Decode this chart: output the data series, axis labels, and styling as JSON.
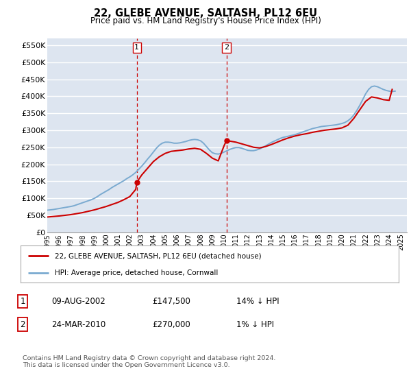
{
  "title": "22, GLEBE AVENUE, SALTASH, PL12 6EU",
  "subtitle": "Price paid vs. HM Land Registry's House Price Index (HPI)",
  "ylabel_ticks": [
    "£0",
    "£50K",
    "£100K",
    "£150K",
    "£200K",
    "£250K",
    "£300K",
    "£350K",
    "£400K",
    "£450K",
    "£500K",
    "£550K"
  ],
  "ytick_values": [
    0,
    50000,
    100000,
    150000,
    200000,
    250000,
    300000,
    350000,
    400000,
    450000,
    500000,
    550000
  ],
  "ylim": [
    0,
    570000
  ],
  "x_tick_years": [
    1995,
    1996,
    1997,
    1998,
    1999,
    2000,
    2001,
    2002,
    2003,
    2004,
    2005,
    2006,
    2007,
    2008,
    2009,
    2010,
    2011,
    2012,
    2013,
    2014,
    2015,
    2016,
    2017,
    2018,
    2019,
    2020,
    2021,
    2022,
    2023,
    2024,
    2025
  ],
  "bg_color": "#dde5f0",
  "grid_color": "#ffffff",
  "red_line_color": "#cc0000",
  "blue_line_color": "#7aaad0",
  "vline_color": "#cc0000",
  "marker1_year": 2002.6,
  "marker2_year": 2010.2,
  "marker1_value": 147500,
  "marker2_value": 270000,
  "legend_label_red": "22, GLEBE AVENUE, SALTASH, PL12 6EU (detached house)",
  "legend_label_blue": "HPI: Average price, detached house, Cornwall",
  "table_row1": [
    "1",
    "09-AUG-2002",
    "£147,500",
    "14% ↓ HPI"
  ],
  "table_row2": [
    "2",
    "24-MAR-2010",
    "£270,000",
    "1% ↓ HPI"
  ],
  "footer": "Contains HM Land Registry data © Crown copyright and database right 2024.\nThis data is licensed under the Open Government Licence v3.0.",
  "hpi_years": [
    1995,
    1995.25,
    1995.5,
    1995.75,
    1996,
    1996.25,
    1996.5,
    1996.75,
    1997,
    1997.25,
    1997.5,
    1997.75,
    1998,
    1998.25,
    1998.5,
    1998.75,
    1999,
    1999.25,
    1999.5,
    1999.75,
    2000,
    2000.25,
    2000.5,
    2000.75,
    2001,
    2001.25,
    2001.5,
    2001.75,
    2002,
    2002.25,
    2002.5,
    2002.75,
    2003,
    2003.25,
    2003.5,
    2003.75,
    2004,
    2004.25,
    2004.5,
    2004.75,
    2005,
    2005.25,
    2005.5,
    2005.75,
    2006,
    2006.25,
    2006.5,
    2006.75,
    2007,
    2007.25,
    2007.5,
    2007.75,
    2008,
    2008.25,
    2008.5,
    2008.75,
    2009,
    2009.25,
    2009.5,
    2009.75,
    2010,
    2010.25,
    2010.5,
    2010.75,
    2011,
    2011.25,
    2011.5,
    2011.75,
    2012,
    2012.25,
    2012.5,
    2012.75,
    2013,
    2013.25,
    2013.5,
    2013.75,
    2014,
    2014.25,
    2014.5,
    2014.75,
    2015,
    2015.25,
    2015.5,
    2015.75,
    2016,
    2016.25,
    2016.5,
    2016.75,
    2017,
    2017.25,
    2017.5,
    2017.75,
    2018,
    2018.25,
    2018.5,
    2018.75,
    2019,
    2019.25,
    2019.5,
    2019.75,
    2020,
    2020.25,
    2020.5,
    2020.75,
    2021,
    2021.25,
    2021.5,
    2021.75,
    2022,
    2022.25,
    2022.5,
    2022.75,
    2023,
    2023.25,
    2023.5,
    2023.75,
    2024,
    2024.25,
    2024.5
  ],
  "hpi_values": [
    65000,
    66000,
    67000,
    68500,
    70000,
    71500,
    73000,
    74500,
    76000,
    78000,
    81000,
    84000,
    87000,
    90000,
    93000,
    96000,
    100000,
    105000,
    111000,
    116000,
    121000,
    126000,
    132000,
    137000,
    142000,
    147000,
    152000,
    158000,
    163000,
    169000,
    176000,
    185000,
    194000,
    204000,
    215000,
    225000,
    236000,
    247000,
    256000,
    262000,
    265000,
    265000,
    264000,
    262000,
    262000,
    263000,
    265000,
    267000,
    270000,
    272000,
    273000,
    272000,
    269000,
    262000,
    252000,
    242000,
    234000,
    231000,
    230000,
    232000,
    236000,
    240000,
    244000,
    247000,
    249000,
    249000,
    247000,
    244000,
    241000,
    240000,
    240000,
    242000,
    245000,
    249000,
    254000,
    259000,
    264000,
    268000,
    272000,
    276000,
    279000,
    281000,
    283000,
    285000,
    287000,
    290000,
    293000,
    296000,
    299000,
    302000,
    305000,
    307000,
    309000,
    311000,
    312000,
    313000,
    314000,
    315000,
    316000,
    318000,
    320000,
    323000,
    328000,
    335000,
    345000,
    358000,
    373000,
    390000,
    407000,
    420000,
    428000,
    430000,
    428000,
    424000,
    420000,
    417000,
    415000,
    414000,
    415000
  ],
  "red_years": [
    1995,
    1995.5,
    1996,
    1996.5,
    1997,
    1997.5,
    1998,
    1998.5,
    1999,
    1999.5,
    2000,
    2000.5,
    2001,
    2001.5,
    2002,
    2002.5,
    2002.6,
    2003,
    2003.5,
    2004,
    2004.5,
    2005,
    2005.5,
    2006,
    2006.5,
    2007,
    2007.5,
    2008,
    2008.5,
    2009,
    2009.5,
    2010,
    2010.2,
    2010.5,
    2011,
    2011.5,
    2012,
    2012.5,
    2013,
    2013.5,
    2014,
    2014.5,
    2015,
    2015.5,
    2016,
    2016.5,
    2017,
    2017.5,
    2018,
    2018.5,
    2019,
    2019.5,
    2020,
    2020.5,
    2021,
    2021.5,
    2022,
    2022.5,
    2023,
    2023.5,
    2024,
    2024.25
  ],
  "red_values": [
    45000,
    46500,
    48000,
    50000,
    52000,
    55000,
    58000,
    62000,
    66000,
    71000,
    76000,
    82000,
    88000,
    96000,
    105000,
    126000,
    147500,
    168000,
    188000,
    208000,
    222000,
    232000,
    238000,
    240000,
    242000,
    245000,
    247000,
    244000,
    232000,
    218000,
    210000,
    255000,
    270000,
    268000,
    265000,
    260000,
    255000,
    250000,
    248000,
    252000,
    258000,
    265000,
    272000,
    278000,
    283000,
    287000,
    290000,
    294000,
    297000,
    300000,
    302000,
    304000,
    307000,
    315000,
    335000,
    360000,
    385000,
    398000,
    395000,
    390000,
    388000,
    420000
  ]
}
